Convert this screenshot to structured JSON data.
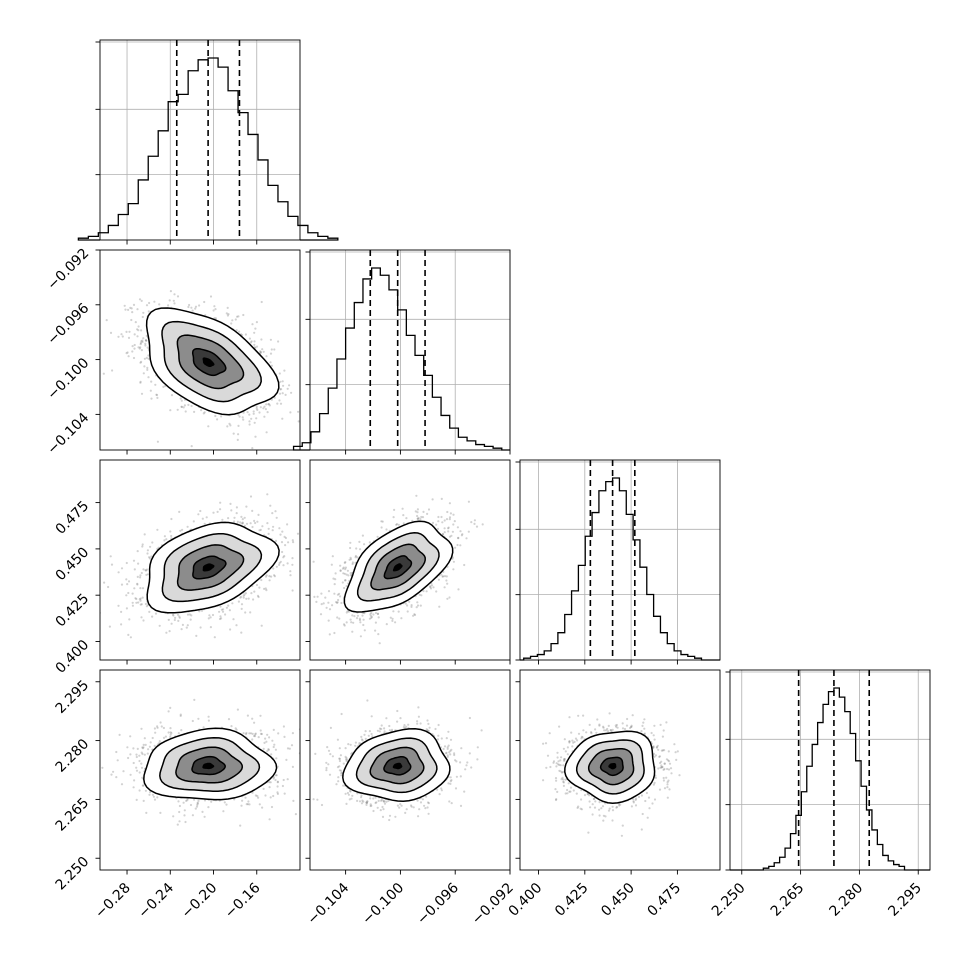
{
  "figure": {
    "background": "#ffffff",
    "grid_color": "#b0b0b0",
    "line_color": "#000000",
    "hist_line_color": "#000000",
    "density_color_dark": "#000000",
    "scatter_color": "#7f7f7f"
  },
  "chart_data": {
    "type": "corner",
    "n_params": 4,
    "params": [
      {
        "mean": -0.205,
        "sigma": 0.03,
        "lim": [
          -0.305,
          -0.12
        ],
        "ticks": [
          -0.28,
          -0.24,
          -0.2,
          -0.16
        ],
        "tick_labels": [
          "−0.28",
          "−0.24",
          "−0.20",
          "−0.16"
        ],
        "quantiles": [
          -0.234,
          -0.205,
          -0.176
        ],
        "hist_counts": [
          1,
          2,
          4,
          8,
          14,
          20,
          33,
          46,
          60,
          76,
          80,
          93,
          99,
          100,
          95,
          82,
          70,
          58,
          44,
          30,
          21,
          13,
          8,
          4,
          2,
          1
        ]
      },
      {
        "mean": -0.1002,
        "sigma": 0.0019,
        "lim": [
          -0.1066,
          -0.092
        ],
        "ticks": [
          -0.104,
          -0.1,
          -0.096,
          -0.092
        ],
        "tick_labels": [
          "−0.104",
          "−0.100",
          "−0.096",
          "−0.092"
        ],
        "quantiles": [
          -0.1022,
          -0.1002,
          -0.0982
        ],
        "hist_counts": [
          2,
          4,
          10,
          20,
          34,
          50,
          67,
          81,
          94,
          100,
          96,
          88,
          77,
          63,
          52,
          41,
          29,
          19,
          12,
          7,
          5,
          3,
          2,
          1
        ]
      },
      {
        "mean": 0.44,
        "sigma": 0.012,
        "lim": [
          0.39,
          0.498
        ],
        "ticks": [
          0.4,
          0.425,
          0.45,
          0.475
        ],
        "tick_labels": [
          "0.400",
          "0.425",
          "0.450",
          "0.475"
        ],
        "quantiles": [
          0.428,
          0.44,
          0.452
        ],
        "hist_counts": [
          1,
          2,
          3,
          5,
          9,
          15,
          25,
          38,
          52,
          68,
          81,
          93,
          98,
          100,
          93,
          80,
          66,
          51,
          36,
          24,
          15,
          9,
          5,
          3,
          2,
          1
        ]
      },
      {
        "mean": 2.2735,
        "sigma": 0.0045,
        "lim": [
          2.247,
          2.298
        ],
        "ticks": [
          2.25,
          2.265,
          2.28,
          2.295
        ],
        "tick_labels": [
          "2.250",
          "2.265",
          "2.280",
          "2.295"
        ],
        "quantiles": [
          2.2645,
          2.2735,
          2.2825
        ],
        "hist_counts": [
          1,
          2,
          4,
          7,
          12,
          20,
          30,
          43,
          57,
          69,
          81,
          91,
          98,
          100,
          95,
          87,
          75,
          60,
          46,
          33,
          22,
          14,
          8,
          5,
          3,
          2
        ]
      }
    ],
    "correlations": [
      [
        1,
        -0.45,
        0.35,
        0.05
      ],
      [
        -0.45,
        1,
        0.5,
        0.1
      ],
      [
        0.35,
        0.5,
        1,
        0.05
      ],
      [
        0.05,
        0.1,
        0.05,
        1
      ]
    ],
    "contour_levels_sigma": [
      0.5,
      1.0,
      1.5,
      2.0
    ],
    "hist_yticks_fraction": [
      0.33,
      0.66,
      1.0
    ],
    "n_samples_scatter": 1800,
    "grid": true,
    "xlabels": [],
    "ylabels": []
  }
}
